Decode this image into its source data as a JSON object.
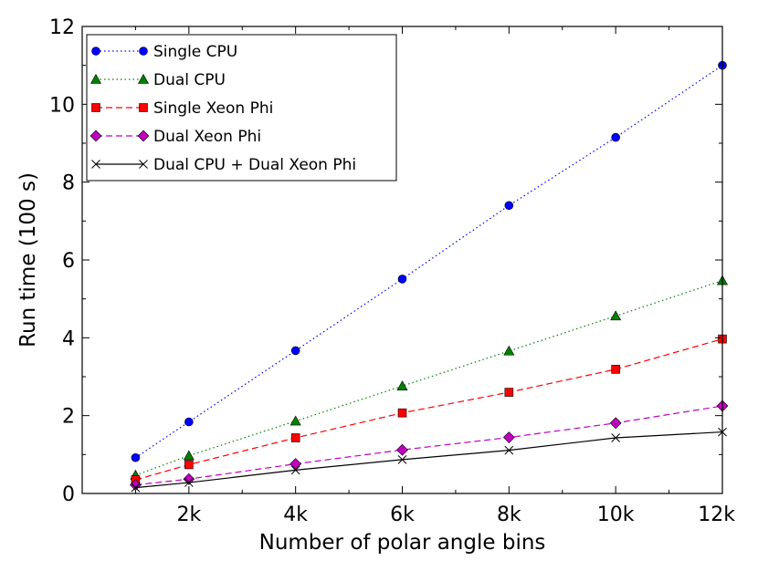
{
  "chart_data": {
    "type": "line",
    "title": "",
    "xlabel": "Number of polar angle bins",
    "ylabel": "Run time (100 s)",
    "xlim": [
      0,
      12000
    ],
    "ylim": [
      0,
      12
    ],
    "grid": false,
    "legend_position": "top-left",
    "x_ticks": [
      {
        "value": 2000,
        "label": "2k"
      },
      {
        "value": 4000,
        "label": "4k"
      },
      {
        "value": 6000,
        "label": "6k"
      },
      {
        "value": 8000,
        "label": "8k"
      },
      {
        "value": 10000,
        "label": "10k"
      },
      {
        "value": 12000,
        "label": "12k"
      }
    ],
    "y_ticks": [
      {
        "value": 0,
        "label": "0"
      },
      {
        "value": 2,
        "label": "2"
      },
      {
        "value": 4,
        "label": "4"
      },
      {
        "value": 6,
        "label": "6"
      },
      {
        "value": 8,
        "label": "8"
      },
      {
        "value": 10,
        "label": "10"
      },
      {
        "value": 12,
        "label": "12"
      }
    ],
    "x": [
      1000,
      2000,
      4000,
      6000,
      8000,
      10000,
      12000
    ],
    "series": [
      {
        "name": "Single CPU",
        "values": [
          0.92,
          1.84,
          3.67,
          5.51,
          7.4,
          9.15,
          11.0
        ],
        "color": "#0000ff",
        "marker": "circle",
        "line": "dotted"
      },
      {
        "name": "Dual CPU",
        "values": [
          0.47,
          0.97,
          1.86,
          2.76,
          3.66,
          4.56,
          5.47
        ],
        "color": "#008000",
        "marker": "triangle",
        "line": "dotted"
      },
      {
        "name": "Single Xeon Phi",
        "values": [
          0.35,
          0.74,
          1.43,
          2.07,
          2.6,
          3.19,
          3.97
        ],
        "color": "#ff0000",
        "marker": "square",
        "line": "dashed"
      },
      {
        "name": "Dual Xeon Phi",
        "values": [
          0.22,
          0.37,
          0.76,
          1.12,
          1.44,
          1.81,
          2.25
        ],
        "color": "#bf00bf",
        "marker": "diamond",
        "line": "dashed"
      },
      {
        "name": "Dual CPU + Dual Xeon Phi",
        "values": [
          0.15,
          0.28,
          0.6,
          0.87,
          1.11,
          1.43,
          1.58
        ],
        "color": "#000000",
        "marker": "x",
        "line": "solid"
      }
    ]
  }
}
